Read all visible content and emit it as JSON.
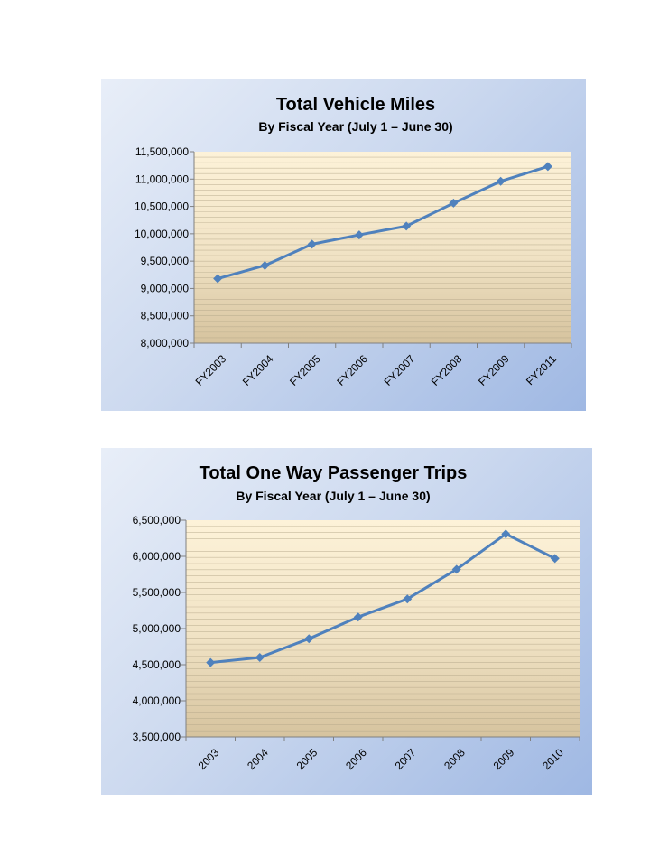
{
  "chart_data": [
    {
      "type": "line",
      "title": "Total Vehicle Miles",
      "subtitle": "By Fiscal Year (July 1 – June 30)",
      "categories": [
        "FY2003",
        "FY2004",
        "FY2005",
        "FY2006",
        "FY2007",
        "FY2008",
        "FY2009",
        "FY2011"
      ],
      "values": [
        9180000,
        9420000,
        9810000,
        9980000,
        10140000,
        10560000,
        10960000,
        11230000
      ],
      "ylim": [
        8000000,
        11500000
      ],
      "yticks": [
        "8,000,000",
        "8,500,000",
        "9,000,000",
        "9,500,000",
        "10,000,000",
        "10,500,000",
        "11,000,000",
        "11,500,000"
      ],
      "xlabel": "",
      "ylabel": "",
      "grid": true,
      "line_color": "#4f81bd",
      "legend": "none"
    },
    {
      "type": "line",
      "title": "Total One Way Passenger Trips",
      "subtitle": "By Fiscal Year (July 1 – June 30)",
      "categories": [
        "2003",
        "2004",
        "2005",
        "2006",
        "2007",
        "2008",
        "2009",
        "2010"
      ],
      "values": [
        4530000,
        4600000,
        4860000,
        5160000,
        5410000,
        5820000,
        6310000,
        5970000
      ],
      "ylim": [
        3500000,
        6500000
      ],
      "yticks": [
        "3,500,000",
        "4,000,000",
        "4,500,000",
        "5,000,000",
        "5,500,000",
        "6,000,000",
        "6,500,000"
      ],
      "xlabel": "",
      "ylabel": "",
      "grid": true,
      "line_color": "#4f81bd",
      "legend": "none"
    }
  ]
}
